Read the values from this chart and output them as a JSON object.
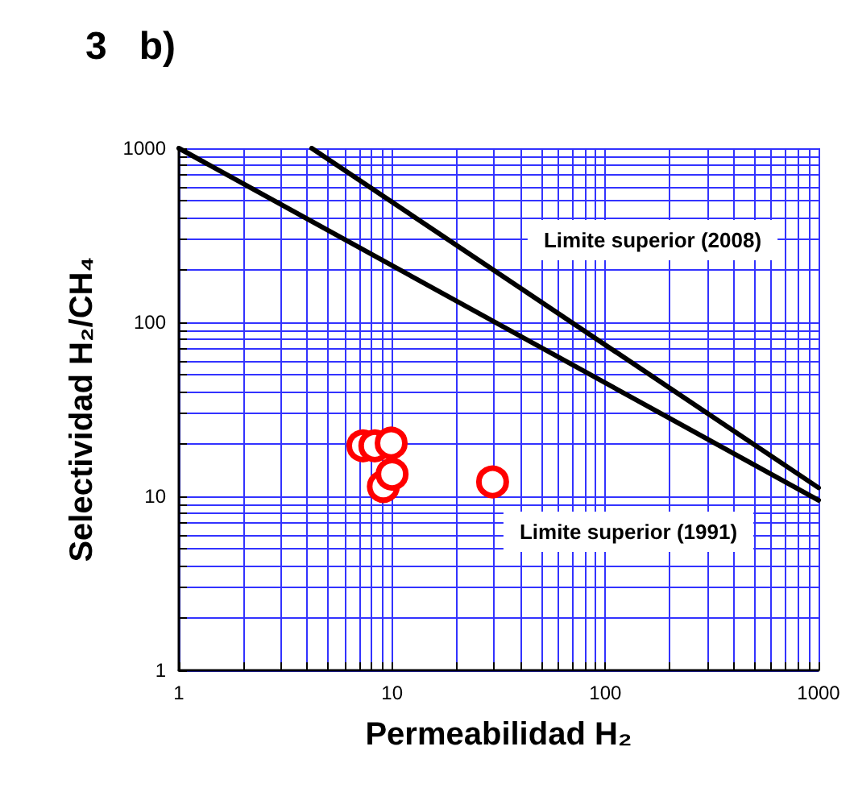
{
  "chart_data": {
    "type": "scatter",
    "title": "3   b)",
    "xlabel": "Permeabilidad H₂",
    "ylabel": "Selectividad H₂/CH₄",
    "log": "xy",
    "grid": true,
    "xlim": [
      1,
      1000
    ],
    "ylim": [
      1,
      1000
    ],
    "xticks": [
      1,
      {
        "value": 2,
        "label": null
      },
      {
        "value": 3,
        "label": null
      },
      {
        "value": 4,
        "label": null
      },
      {
        "value": 5,
        "label": null
      },
      {
        "value": 6,
        "label": null
      },
      {
        "value": 7,
        "label": null
      },
      {
        "value": 8,
        "label": null
      },
      {
        "value": 9,
        "label": null
      },
      10,
      {
        "value": 20,
        "label": null
      },
      {
        "value": 30,
        "label": null
      },
      {
        "value": 40,
        "label": null
      },
      {
        "value": 50,
        "label": null
      },
      {
        "value": 60,
        "label": null
      },
      {
        "value": 70,
        "label": null
      },
      {
        "value": 80,
        "label": null
      },
      {
        "value": 90,
        "label": null
      },
      100,
      {
        "value": 200,
        "label": null
      },
      {
        "value": 300,
        "label": null
      },
      {
        "value": 400,
        "label": null
      },
      {
        "value": 500,
        "label": null
      },
      {
        "value": 600,
        "label": null
      },
      {
        "value": 700,
        "label": null
      },
      {
        "value": 800,
        "label": null
      },
      {
        "value": 900,
        "label": null
      },
      1000
    ],
    "yticks": [
      1,
      {
        "value": 2,
        "label": null
      },
      {
        "value": 3,
        "label": null
      },
      {
        "value": 4,
        "label": null
      },
      {
        "value": 5,
        "label": null
      },
      {
        "value": 6,
        "label": null
      },
      {
        "value": 7,
        "label": null
      },
      {
        "value": 8,
        "label": null
      },
      {
        "value": 9,
        "label": null
      },
      10,
      {
        "value": 20,
        "label": null
      },
      {
        "value": 30,
        "label": null
      },
      {
        "value": 40,
        "label": null
      },
      {
        "value": 50,
        "label": null
      },
      {
        "value": 60,
        "label": null
      },
      {
        "value": 70,
        "label": null
      },
      {
        "value": 80,
        "label": null
      },
      {
        "value": 90,
        "label": null
      },
      100,
      {
        "value": 200,
        "label": null
      },
      {
        "value": 300,
        "label": null
      },
      {
        "value": 400,
        "label": null
      },
      {
        "value": 500,
        "label": null
      },
      {
        "value": 600,
        "label": null
      },
      {
        "value": 700,
        "label": null
      },
      {
        "value": 800,
        "label": null
      },
      {
        "value": 900,
        "label": null
      },
      1000
    ],
    "series": [
      {
        "type": "line",
        "color": "#000000",
        "marker": "none",
        "line_style": "solid",
        "x": [
          1,
          1000
        ],
        "values": [
          1000,
          9.5
        ]
      },
      {
        "type": "line",
        "color": "#000000",
        "marker": "none",
        "line_style": "solid",
        "x": [
          4.2,
          1000
        ],
        "values": [
          1000,
          11.2
        ]
      },
      {
        "color": "#ff0000",
        "marker": "circle",
        "x": [
          7.3,
          8.3,
          9.9,
          9.1,
          10,
          29.6
        ],
        "values": [
          19.5,
          19.5,
          20.2,
          11.4,
          13.4,
          12.1
        ]
      }
    ],
    "annotations": [
      "Limite superior (2008)",
      "Limite superior (1991)"
    ]
  }
}
